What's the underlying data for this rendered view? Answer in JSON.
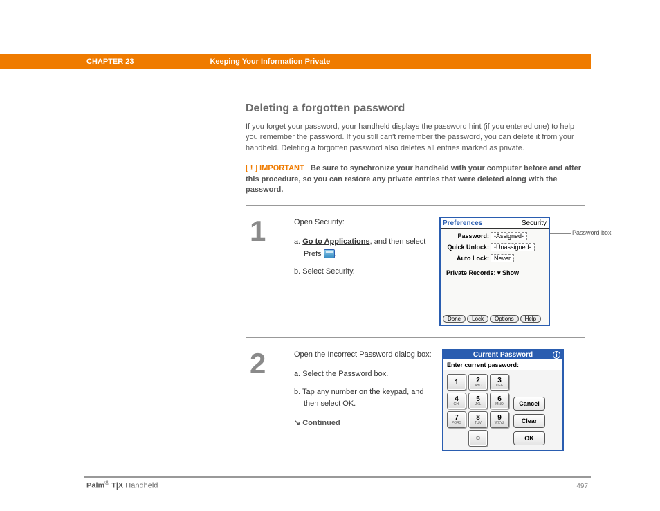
{
  "header": {
    "chapter_label": "CHAPTER 23",
    "chapter_title": "Keeping Your Information Private"
  },
  "section": {
    "title": "Deleting a forgotten password",
    "intro": "If you forget your password, your handheld displays the password hint (if you entered one) to help you remember the password. If you still can't remember the password, you can delete it from your handheld. Deleting a forgotten password also deletes all entries marked as private.",
    "important_tag": "[ ! ] IMPORTANT",
    "important_text": "Be sure to synchronize your handheld with your computer before and after this procedure, so you can restore any private entries that were deleted along with the password."
  },
  "steps": [
    {
      "num": "1",
      "lead": "Open Security:",
      "a_prefix": "a.  ",
      "a_link": "Go to Applications",
      "a_suffix": ", and then select Prefs ",
      "a_end": ".",
      "b": "b.  Select Security."
    },
    {
      "num": "2",
      "lead": "Open the Incorrect Password dialog box:",
      "a": "a.  Select the Password box.",
      "b": "b.  Tap any number on the keypad, and then select OK.",
      "continued": "Continued"
    }
  ],
  "prefs_shot": {
    "title_left": "Preferences",
    "title_right": "Security",
    "rows": [
      {
        "k": "Password:",
        "v": "-Assigned-"
      },
      {
        "k": "Quick Unlock:",
        "v": "-Unassigned-"
      },
      {
        "k": "Auto Lock:",
        "v": "Never"
      }
    ],
    "private_records": "Private Records: ▾ Show",
    "buttons": [
      "Done",
      "Lock",
      "Options",
      "Help"
    ],
    "callout": "Password box"
  },
  "pwd_shot": {
    "title": "Current Password",
    "instruction": "Enter current password:",
    "keys": [
      {
        "n": "1",
        "s": ""
      },
      {
        "n": "2",
        "s": "ABC"
      },
      {
        "n": "3",
        "s": "DEF"
      },
      {
        "n": "4",
        "s": "GHI"
      },
      {
        "n": "5",
        "s": "JKL"
      },
      {
        "n": "6",
        "s": "MNO"
      },
      {
        "n": "7",
        "s": "PQRS"
      },
      {
        "n": "8",
        "s": "TUV"
      },
      {
        "n": "9",
        "s": "WXYZ"
      },
      {
        "n": "0",
        "s": ""
      }
    ],
    "side_buttons": [
      "Cancel",
      "Clear",
      "OK"
    ]
  },
  "footer": {
    "brand": "Palm",
    "model": "T|X",
    "product": " Handheld",
    "page": "497"
  },
  "colors": {
    "accent": "#ef7b00",
    "blue": "#2a5db0",
    "gray_text": "#6a6a6a"
  }
}
